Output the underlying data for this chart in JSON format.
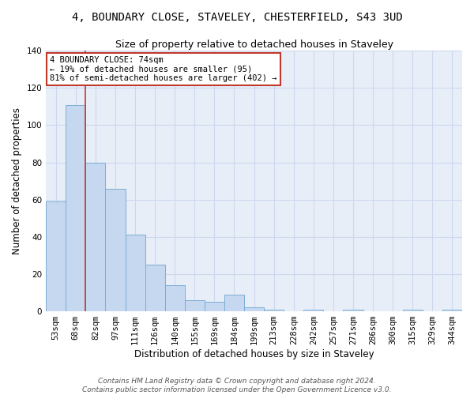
{
  "title_line1": "4, BOUNDARY CLOSE, STAVELEY, CHESTERFIELD, S43 3UD",
  "title_line2": "Size of property relative to detached houses in Staveley",
  "xlabel": "Distribution of detached houses by size in Staveley",
  "ylabel": "Number of detached properties",
  "categories": [
    "53sqm",
    "68sqm",
    "82sqm",
    "97sqm",
    "111sqm",
    "126sqm",
    "140sqm",
    "155sqm",
    "169sqm",
    "184sqm",
    "199sqm",
    "213sqm",
    "228sqm",
    "242sqm",
    "257sqm",
    "271sqm",
    "286sqm",
    "300sqm",
    "315sqm",
    "329sqm",
    "344sqm"
  ],
  "values": [
    59,
    111,
    80,
    66,
    41,
    25,
    14,
    6,
    5,
    9,
    2,
    1,
    0,
    1,
    0,
    1,
    0,
    0,
    1,
    0,
    1
  ],
  "bar_color": "#c5d8f0",
  "bar_edge_color": "#7badd4",
  "grid_color": "#cdd8ee",
  "background_color": "#e8eef8",
  "vline_color": "#c0392b",
  "annotation_text": "4 BOUNDARY CLOSE: 74sqm\n← 19% of detached houses are smaller (95)\n81% of semi-detached houses are larger (402) →",
  "annotation_box_color": "#ffffff",
  "annotation_box_edge": "#c0392b",
  "ylim": [
    0,
    140
  ],
  "yticks": [
    0,
    20,
    40,
    60,
    80,
    100,
    120,
    140
  ],
  "footer": "Contains HM Land Registry data © Crown copyright and database right 2024.\nContains public sector information licensed under the Open Government Licence v3.0.",
  "title_fontsize": 10,
  "subtitle_fontsize": 9,
  "axis_label_fontsize": 8.5,
  "tick_fontsize": 7.5,
  "footer_fontsize": 6.5
}
